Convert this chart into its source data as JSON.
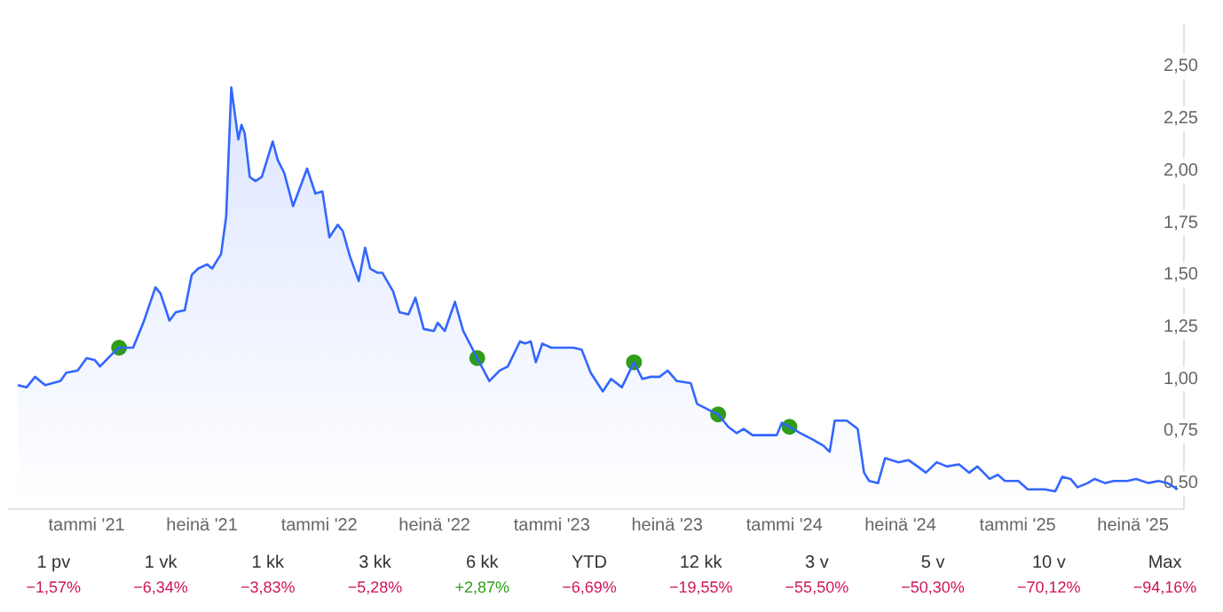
{
  "chart_data": {
    "type": "area",
    "legend": false,
    "grid": false,
    "xlim": [
      "2020-09-01",
      "2025-09-19"
    ],
    "xticks": [
      {
        "value": "2021-01",
        "label": "tammi '21"
      },
      {
        "value": "2021-07",
        "label": "heinä '21"
      },
      {
        "value": "2022-01",
        "label": "tammi '22"
      },
      {
        "value": "2022-07",
        "label": "heinä '22"
      },
      {
        "value": "2023-01",
        "label": "tammi '23"
      },
      {
        "value": "2023-07",
        "label": "heinä '23"
      },
      {
        "value": "2024-01",
        "label": "tammi '24"
      },
      {
        "value": "2024-07",
        "label": "heinä '24"
      },
      {
        "value": "2025-01",
        "label": "tammi '25"
      },
      {
        "value": "2025-07",
        "label": "heinä '25"
      }
    ],
    "ylim": [
      0.375,
      2.7
    ],
    "yticks": [
      {
        "value": 0.5,
        "label": "0,50"
      },
      {
        "value": 0.75,
        "label": "0,75"
      },
      {
        "value": 1,
        "label": "1,00"
      },
      {
        "value": 1.25,
        "label": "1,25"
      },
      {
        "value": 1.5,
        "label": "1,50"
      },
      {
        "value": 1.75,
        "label": "1,75"
      },
      {
        "value": 2,
        "label": "2,00"
      },
      {
        "value": 2.25,
        "label": "2,25"
      },
      {
        "value": 2.5,
        "label": "2,50"
      }
    ],
    "series": [
      {
        "type": "area",
        "color": "#3366ff",
        "x": [
          "2020-09-15",
          "2020-09-29",
          "2020-10-12",
          "2020-10-28",
          "2020-11-21",
          "2020-11-30",
          "2020-12-18",
          "2021-01-01",
          "2021-01-14",
          "2021-01-22",
          "2021-02-10",
          "2021-02-21",
          "2021-03-15",
          "2021-03-31",
          "2021-04-19",
          "2021-04-27",
          "2021-05-11",
          "2021-05-21",
          "2021-06-04",
          "2021-06-15",
          "2021-06-25",
          "2021-07-09",
          "2021-07-17",
          "2021-07-31",
          "2021-08-08",
          "2021-08-16",
          "2021-08-27",
          "2021-09-01",
          "2021-09-06",
          "2021-09-14",
          "2021-09-23",
          "2021-10-03",
          "2021-10-20",
          "2021-10-28",
          "2021-11-07",
          "2021-11-21",
          "2021-12-02",
          "2021-12-13",
          "2021-12-26",
          "2022-01-06",
          "2022-01-17",
          "2022-01-30",
          "2022-02-07",
          "2022-02-18",
          "2022-03-04",
          "2022-03-14",
          "2022-03-22",
          "2022-04-02",
          "2022-04-10",
          "2022-04-27",
          "2022-05-07",
          "2022-05-21",
          "2022-06-01",
          "2022-06-14",
          "2022-06-30",
          "2022-07-06",
          "2022-07-17",
          "2022-08-02",
          "2022-08-15",
          "2022-09-06",
          "2022-09-25",
          "2022-10-11",
          "2022-10-24",
          "2022-11-12",
          "2022-11-20",
          "2022-11-29",
          "2022-12-07",
          "2022-12-17",
          "2022-12-31",
          "2023-01-13",
          "2023-02-04",
          "2023-02-17",
          "2023-03-03",
          "2023-03-22",
          "2023-04-04",
          "2023-04-21",
          "2023-05-10",
          "2023-05-23",
          "2023-06-05",
          "2023-06-19",
          "2023-07-02",
          "2023-07-16",
          "2023-08-07",
          "2023-08-17",
          "2023-09-05",
          "2023-09-19",
          "2023-10-05",
          "2023-10-18",
          "2023-10-29",
          "2023-11-12",
          "2023-12-20",
          "2023-12-28",
          "2024-01-09",
          "2024-01-26",
          "2024-02-14",
          "2024-03-02",
          "2024-03-12",
          "2024-03-20",
          "2024-04-08",
          "2024-04-25",
          "2024-05-05",
          "2024-05-13",
          "2024-05-27",
          "2024-06-07",
          "2024-06-28",
          "2024-07-14",
          "2024-07-28",
          "2024-08-10",
          "2024-08-27",
          "2024-09-12",
          "2024-10-01",
          "2024-10-17",
          "2024-10-30",
          "2024-11-18",
          "2024-12-01",
          "2024-12-12",
          "2025-01-02",
          "2025-01-17",
          "2025-01-30",
          "2025-02-13",
          "2025-03-01",
          "2025-03-12",
          "2025-03-25",
          "2025-04-05",
          "2025-04-21",
          "2025-05-02",
          "2025-05-18",
          "2025-06-01",
          "2025-06-22",
          "2025-07-06",
          "2025-07-25",
          "2025-08-10",
          "2025-08-24",
          "2025-09-09"
        ],
        "values": [
          0.97,
          0.96,
          1.01,
          0.97,
          0.99,
          1.03,
          1.04,
          1.1,
          1.09,
          1.06,
          1.12,
          1.15,
          1.15,
          1.27,
          1.44,
          1.41,
          1.28,
          1.32,
          1.33,
          1.5,
          1.53,
          1.55,
          1.53,
          1.6,
          1.78,
          2.4,
          2.15,
          2.22,
          2.18,
          1.97,
          1.95,
          1.97,
          2.14,
          2.05,
          1.99,
          1.83,
          1.92,
          2.01,
          1.89,
          1.9,
          1.68,
          1.74,
          1.71,
          1.59,
          1.47,
          1.63,
          1.53,
          1.51,
          1.51,
          1.42,
          1.32,
          1.31,
          1.39,
          1.24,
          1.23,
          1.27,
          1.23,
          1.37,
          1.23,
          1.1,
          0.99,
          1.04,
          1.06,
          1.18,
          1.17,
          1.18,
          1.08,
          1.17,
          1.15,
          1.15,
          1.15,
          1.14,
          1.03,
          0.94,
          1,
          0.96,
          1.08,
          1,
          1.01,
          1.01,
          1.04,
          0.99,
          0.98,
          0.88,
          0.85,
          0.83,
          0.77,
          0.74,
          0.76,
          0.73,
          0.73,
          0.79,
          0.77,
          0.74,
          0.71,
          0.68,
          0.65,
          0.8,
          0.8,
          0.76,
          0.55,
          0.51,
          0.5,
          0.62,
          0.6,
          0.61,
          0.58,
          0.55,
          0.6,
          0.58,
          0.59,
          0.55,
          0.58,
          0.52,
          0.54,
          0.51,
          0.51,
          0.47,
          0.47,
          0.47,
          0.46,
          0.53,
          0.52,
          0.48,
          0.5,
          0.52,
          0.5,
          0.51,
          0.51,
          0.52,
          0.5,
          0.51,
          0.5,
          0.47
        ]
      },
      {
        "type": "scatter",
        "color": "#2e9e16",
        "x": [
          "2021-02-21",
          "2022-09-06",
          "2023-05-10",
          "2023-09-19",
          "2024-01-09"
        ],
        "values": [
          1.15,
          1.1,
          1.08,
          0.83,
          0.77
        ]
      }
    ],
    "annotations": [
      "1 pv",
      "−1,57%",
      "1 vk",
      "−6,34%",
      "1 kk",
      "−3,83%",
      "3 kk",
      "−5,28%",
      "6 kk",
      "+2,87%",
      "YTD",
      "−6,69%",
      "12 kk",
      "−19,55%",
      "3 v",
      "−55,50%",
      "5 v",
      "−50,30%",
      "10 v",
      "−70,12%",
      "Max",
      "−94,16%"
    ]
  }
}
